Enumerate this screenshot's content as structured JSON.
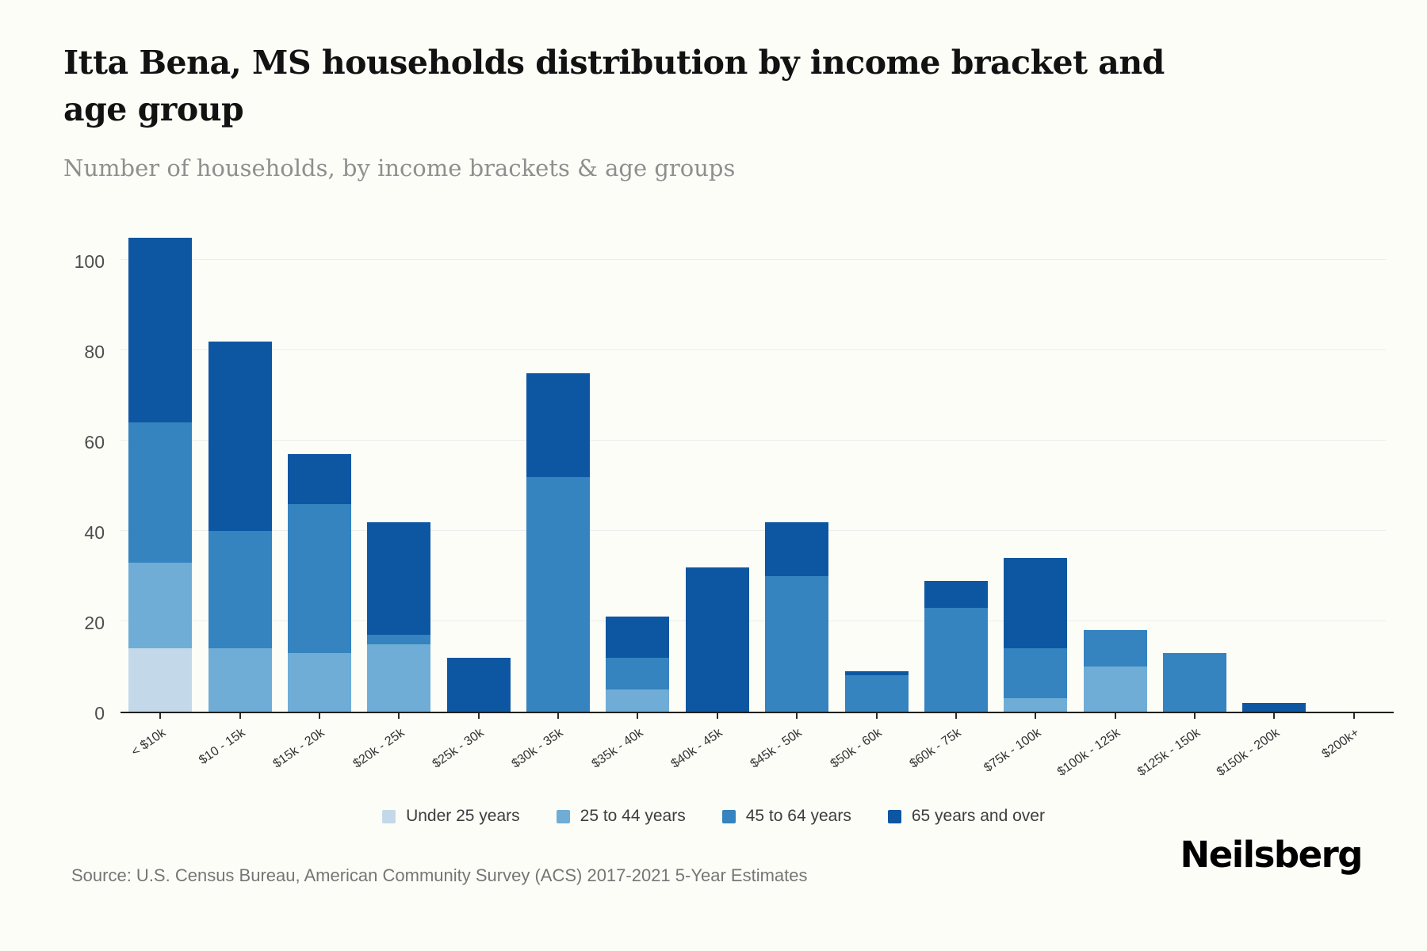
{
  "header": {
    "title": "Itta Bena, MS households distribution by income bracket and age group",
    "subtitle": "Number of households, by income brackets & age groups"
  },
  "footer": {
    "source": "Source: U.S. Census Bureau, American Community Survey (ACS) 2017-2021 5-Year Estimates",
    "logo": "Neilsberg"
  },
  "chart_data": {
    "type": "bar",
    "stacked": true,
    "title": "Itta Bena, MS households distribution by income bracket and age group",
    "subtitle": "Number of households, by income brackets & age groups",
    "xlabel": "",
    "ylabel": "",
    "ylim": [
      0,
      110
    ],
    "yticks": [
      0,
      20,
      40,
      60,
      80,
      100
    ],
    "grid": true,
    "legend_position": "bottom",
    "categories": [
      "< $10k",
      "$10 - 15k",
      "$15k - 20k",
      "$20k - 25k",
      "$25k - 30k",
      "$30k - 35k",
      "$35k - 40k",
      "$40k - 45k",
      "$45k - 50k",
      "$50k - 60k",
      "$60k - 75k",
      "$75k - 100k",
      "$100k - 125k",
      "$125k - 150k",
      "$150k - 200k",
      "$200k+"
    ],
    "series": [
      {
        "name": "Under 25 years",
        "color": "#c3d9ea",
        "values": [
          14,
          0,
          0,
          0,
          0,
          0,
          0,
          0,
          0,
          0,
          0,
          0,
          0,
          0,
          0,
          0
        ]
      },
      {
        "name": "25 to 44 years",
        "color": "#6fadd6",
        "values": [
          19,
          14,
          13,
          15,
          0,
          0,
          5,
          0,
          0,
          0,
          0,
          3,
          10,
          0,
          0,
          0
        ]
      },
      {
        "name": "45 to 64 years",
        "color": "#3583bf",
        "values": [
          31,
          26,
          33,
          2,
          0,
          52,
          7,
          0,
          30,
          8,
          23,
          11,
          8,
          13,
          0,
          0
        ]
      },
      {
        "name": "65 years and over",
        "color": "#0d57a2",
        "values": [
          41,
          42,
          11,
          25,
          12,
          23,
          9,
          32,
          12,
          1,
          6,
          20,
          0,
          0,
          2,
          0
        ]
      }
    ],
    "totals": [
      105,
      82,
      57,
      42,
      12,
      75,
      21,
      32,
      42,
      9,
      29,
      34,
      18,
      13,
      2,
      0
    ]
  }
}
